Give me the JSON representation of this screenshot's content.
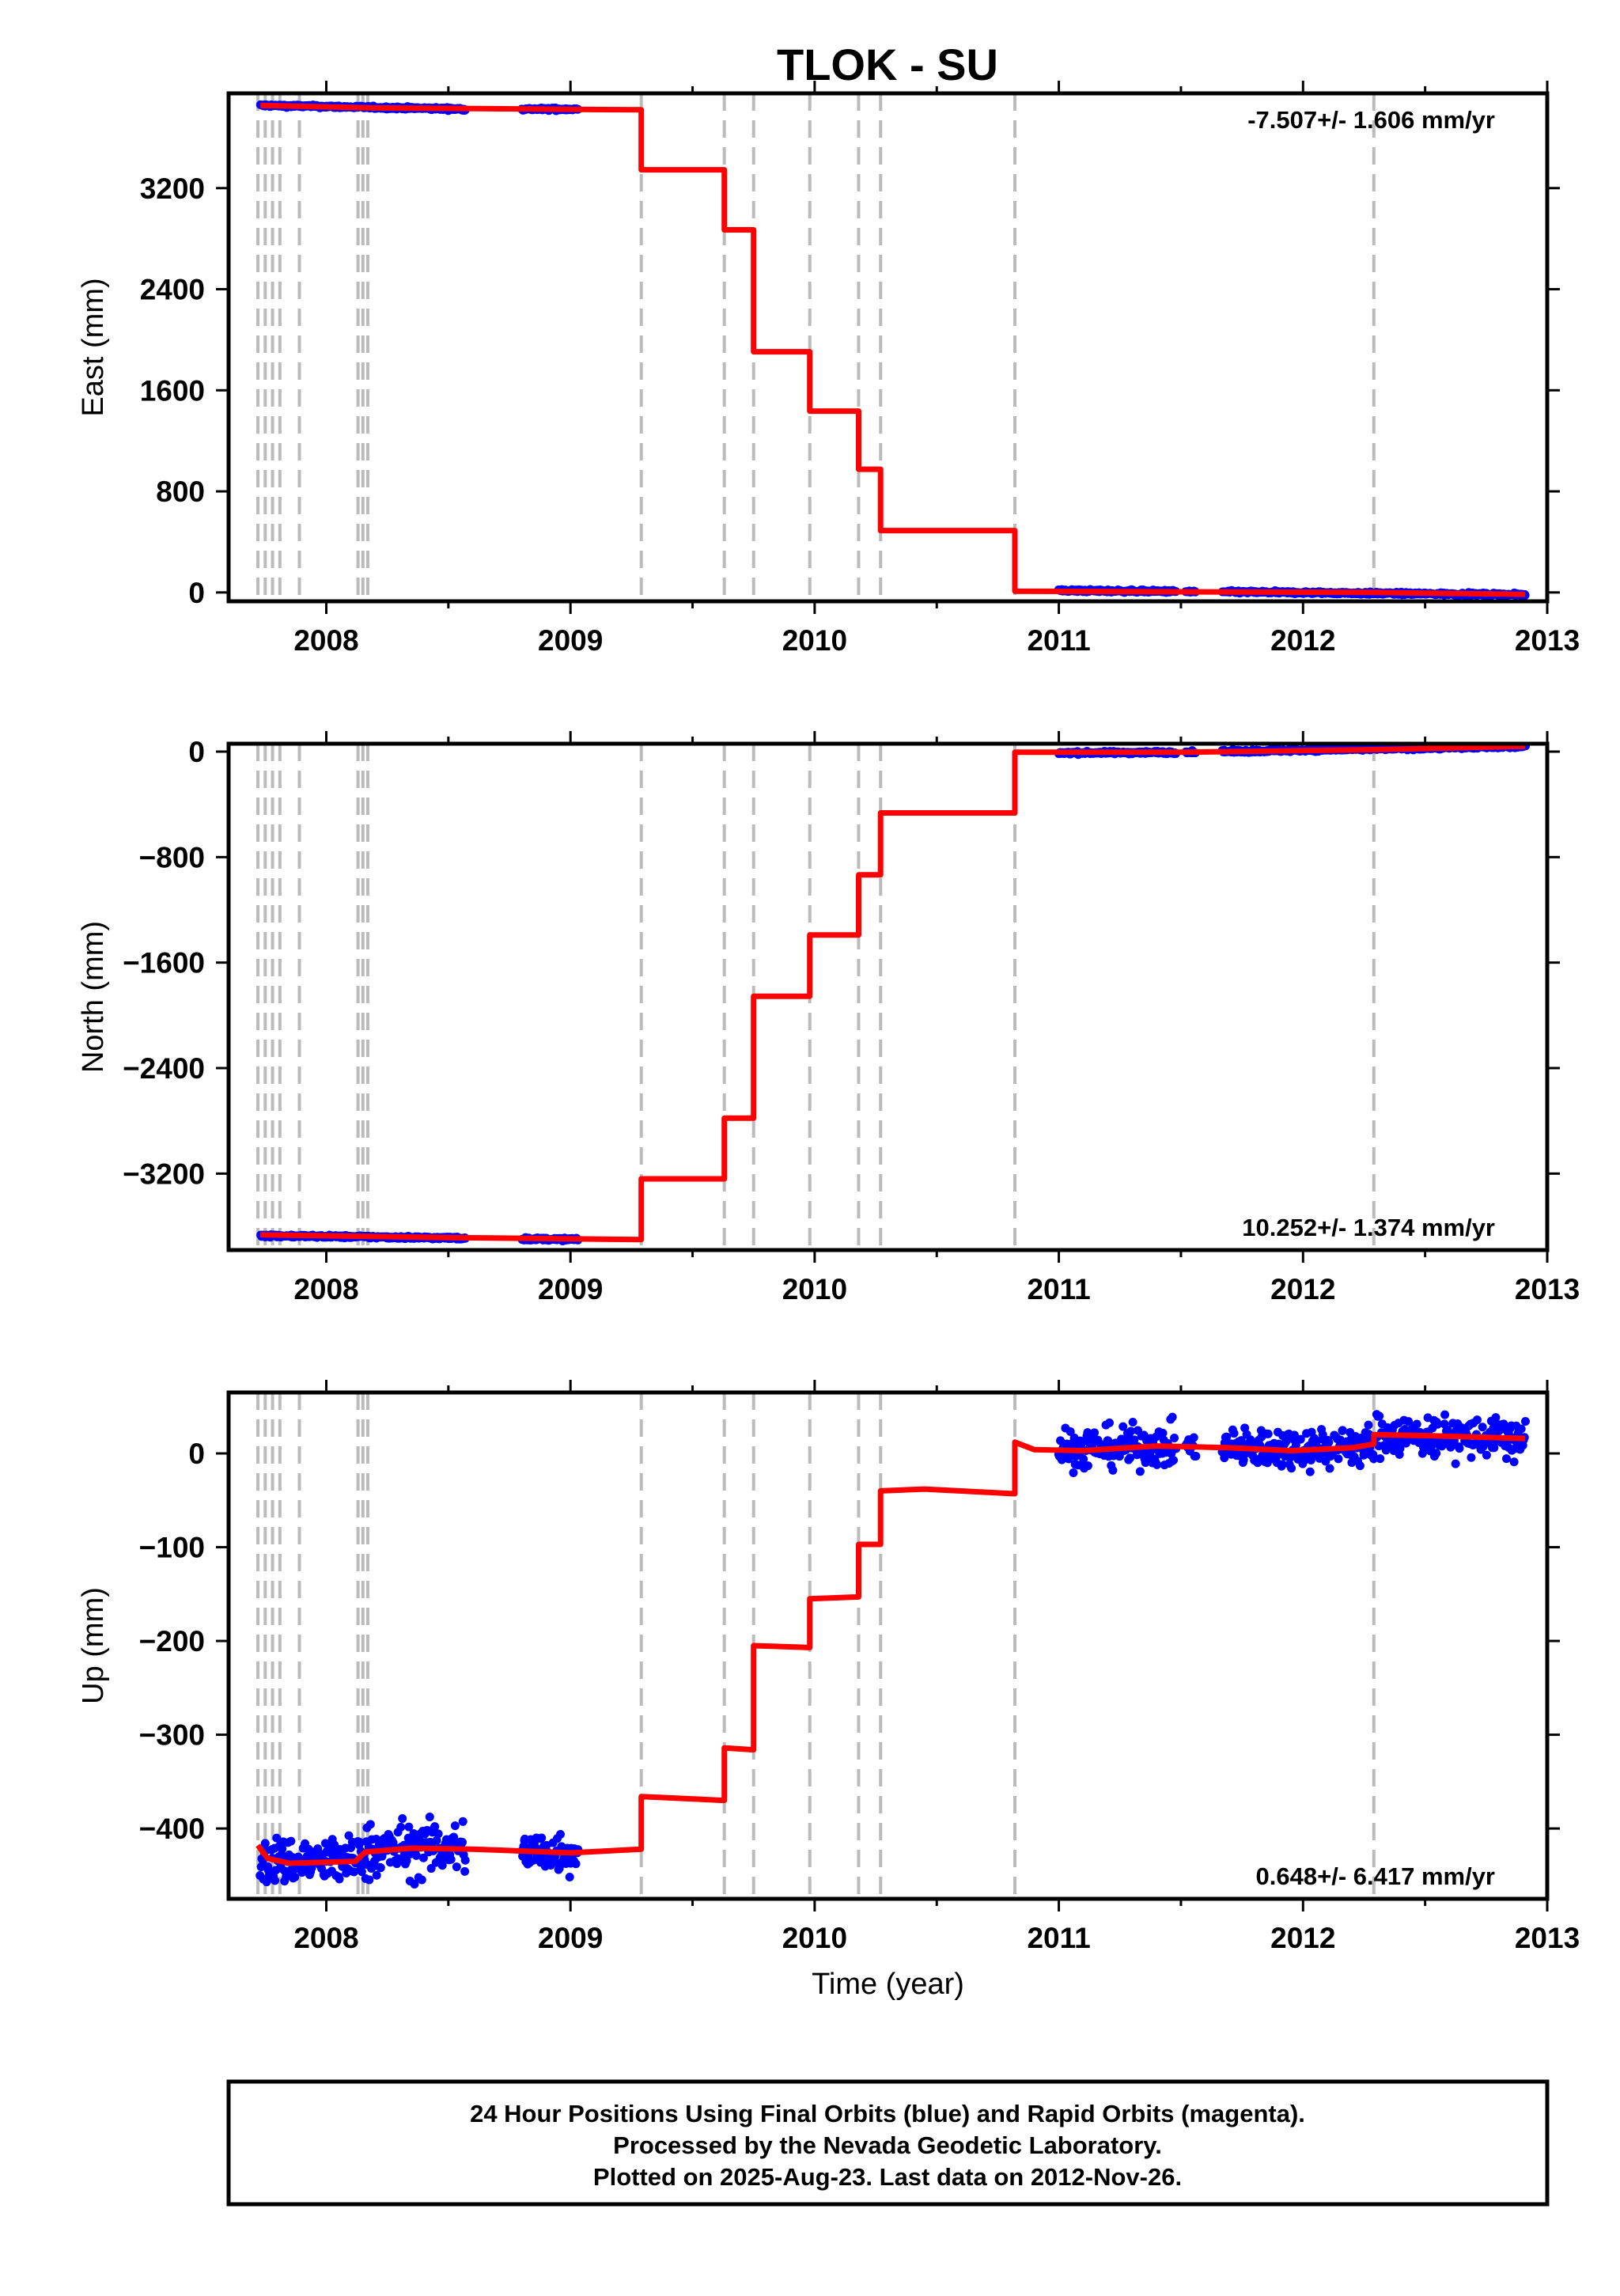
{
  "title": "TLOK - SU",
  "footer": {
    "line1": "24 Hour Positions Using Final Orbits (blue) and Rapid Orbits (magenta).",
    "line2": "Processed by the Nevada Geodetic Laboratory.",
    "line3": "Plotted on 2025-Aug-23. Last data on 2012-Nov-26."
  },
  "colors": {
    "final_orbits": "#0000ff",
    "model": "#ff0000",
    "event_lines": "#bbbbbb",
    "frame": "#000000"
  },
  "chart_data": [
    {
      "type": "scatter",
      "ylabel": "East (mm)",
      "xlabel": "",
      "xlim": [
        2007.6,
        2013.0
      ],
      "ylim": [
        -70,
        3950
      ],
      "yticks": [
        0,
        800,
        1600,
        2400,
        3200
      ],
      "xticks": [
        2008,
        2009,
        2010,
        2011,
        2012,
        2013
      ],
      "rate": "-7.507+/- 1.606 mm/yr",
      "rate_position": "top-right",
      "grid": false,
      "event_lines": [
        2007.72,
        2007.75,
        2007.78,
        2007.81,
        2007.89,
        2008.13,
        2008.15,
        2008.17,
        2009.29,
        2009.63,
        2009.75,
        2009.98,
        2010.18,
        2010.27,
        2010.82,
        2012.29
      ],
      "data_segments": [
        [
          2007.73,
          2008.57
        ],
        [
          2008.8,
          2009.03
        ],
        [
          2011.0,
          2011.48
        ],
        [
          2011.52,
          2011.56
        ],
        [
          2011.67,
          2012.91
        ]
      ],
      "series": [
        {
          "name": "Final Orbits",
          "segments": [
            {
              "start": 2007.73,
              "end": 2008.57,
              "y_start": 3855,
              "y_end": 3825,
              "scatter": 5
            },
            {
              "start": 2008.8,
              "end": 2009.03,
              "y_start": 3825,
              "y_end": 3825,
              "scatter": 5
            },
            {
              "start": 2011.0,
              "end": 2011.48,
              "y_start": 15,
              "y_end": 8,
              "scatter": 5
            },
            {
              "start": 2011.52,
              "end": 2011.56,
              "y_start": 6,
              "y_end": 6,
              "scatter": 5
            },
            {
              "start": 2011.67,
              "end": 2012.91,
              "y_start": 5,
              "y_end": -18,
              "scatter": 5
            }
          ]
        },
        {
          "name": "Model",
          "points": [
            [
              2007.73,
              3855
            ],
            [
              2008.2,
              3835
            ],
            [
              2009.29,
              3820
            ],
            [
              2009.29,
              3345
            ],
            [
              2009.63,
              3345
            ],
            [
              2009.63,
              2870
            ],
            [
              2009.75,
              2870
            ],
            [
              2009.75,
              1905
            ],
            [
              2009.98,
              1905
            ],
            [
              2009.98,
              1435
            ],
            [
              2010.18,
              1435
            ],
            [
              2010.18,
              975
            ],
            [
              2010.27,
              975
            ],
            [
              2010.27,
              490
            ],
            [
              2010.82,
              490
            ],
            [
              2010.82,
              10
            ],
            [
              2011.5,
              5
            ],
            [
              2012.29,
              0
            ],
            [
              2012.91,
              -15
            ]
          ]
        }
      ]
    },
    {
      "type": "scatter",
      "ylabel": "North (mm)",
      "xlabel": "",
      "xlim": [
        2007.6,
        2013.0
      ],
      "ylim": [
        -3780,
        60
      ],
      "yticks": [
        -3200,
        -2400,
        -1600,
        -800,
        0
      ],
      "xticks": [
        2008,
        2009,
        2010,
        2011,
        2012,
        2013
      ],
      "rate": "10.252+/- 1.374 mm/yr",
      "rate_position": "bottom-right",
      "grid": false,
      "event_lines": [
        2007.72,
        2007.75,
        2007.78,
        2007.81,
        2007.89,
        2008.13,
        2008.15,
        2008.17,
        2009.29,
        2009.63,
        2009.75,
        2009.98,
        2010.18,
        2010.27,
        2010.82,
        2012.29
      ],
      "series": [
        {
          "name": "Final Orbits",
          "segments": [
            {
              "start": 2007.73,
              "end": 2008.57,
              "y_start": -3670,
              "y_end": -3690,
              "scatter": 5
            },
            {
              "start": 2008.8,
              "end": 2009.03,
              "y_start": -3695,
              "y_end": -3700,
              "scatter": 5
            },
            {
              "start": 2011.0,
              "end": 2011.48,
              "y_start": -10,
              "y_end": -5,
              "scatter": 5
            },
            {
              "start": 2011.52,
              "end": 2011.56,
              "y_start": -3,
              "y_end": -3,
              "scatter": 5
            },
            {
              "start": 2011.67,
              "end": 2012.91,
              "y_start": 0,
              "y_end": 40,
              "scatter": 5
            }
          ]
        },
        {
          "name": "Model",
          "points": [
            [
              2007.73,
              -3665
            ],
            [
              2008.5,
              -3685
            ],
            [
              2009.29,
              -3700
            ],
            [
              2009.29,
              -3240
            ],
            [
              2009.63,
              -3240
            ],
            [
              2009.63,
              -2780
            ],
            [
              2009.75,
              -2780
            ],
            [
              2009.75,
              -1855
            ],
            [
              2009.98,
              -1855
            ],
            [
              2009.98,
              -1390
            ],
            [
              2010.18,
              -1390
            ],
            [
              2010.18,
              -935
            ],
            [
              2010.27,
              -935
            ],
            [
              2010.27,
              -465
            ],
            [
              2010.82,
              -465
            ],
            [
              2010.82,
              -5
            ],
            [
              2011.5,
              -5
            ],
            [
              2012.29,
              15
            ],
            [
              2012.91,
              40
            ]
          ]
        }
      ]
    },
    {
      "type": "scatter",
      "ylabel": "Up (mm)",
      "xlabel": "Time (year)",
      "xlim": [
        2007.6,
        2013.0
      ],
      "ylim": [
        -475,
        65
      ],
      "yticks": [
        -400,
        -300,
        -200,
        -100,
        0
      ],
      "xticks": [
        2008,
        2009,
        2010,
        2011,
        2012,
        2013
      ],
      "rate": "0.648+/- 6.417 mm/yr",
      "rate_position": "bottom-right",
      "grid": false,
      "event_lines": [
        2007.72,
        2007.75,
        2007.78,
        2007.81,
        2007.89,
        2008.13,
        2008.15,
        2008.17,
        2009.29,
        2009.63,
        2009.75,
        2009.98,
        2010.18,
        2010.27,
        2010.82,
        2012.29
      ],
      "series": [
        {
          "name": "Final Orbits",
          "segments": [
            {
              "start": 2007.73,
              "end": 2008.12,
              "y_start": -435,
              "y_end": -435,
              "scatter": 13
            },
            {
              "start": 2008.13,
              "end": 2008.57,
              "y_start": -425,
              "y_end": -420,
              "scatter": 15
            },
            {
              "start": 2008.8,
              "end": 2009.03,
              "y_start": -425,
              "y_end": -425,
              "scatter": 12
            },
            {
              "start": 2011.0,
              "end": 2011.48,
              "y_start": 5,
              "y_end": 8,
              "scatter": 11
            },
            {
              "start": 2011.52,
              "end": 2011.56,
              "y_start": 8,
              "y_end": 8,
              "scatter": 6
            },
            {
              "start": 2011.67,
              "end": 2012.29,
              "y_start": 5,
              "y_end": 8,
              "scatter": 11
            },
            {
              "start": 2012.29,
              "end": 2012.91,
              "y_start": 20,
              "y_end": 15,
              "scatter": 11
            }
          ]
        },
        {
          "name": "Model",
          "points": [
            [
              2007.72,
              -418
            ],
            [
              2007.76,
              -432
            ],
            [
              2007.85,
              -437
            ],
            [
              2008.12,
              -435
            ],
            [
              2008.16,
              -425
            ],
            [
              2008.35,
              -421
            ],
            [
              2008.6,
              -422
            ],
            [
              2009.0,
              -426
            ],
            [
              2009.29,
              -422
            ],
            [
              2009.29,
              -366
            ],
            [
              2009.63,
              -370
            ],
            [
              2009.63,
              -314
            ],
            [
              2009.75,
              -316
            ],
            [
              2009.75,
              -205
            ],
            [
              2009.98,
              -207
            ],
            [
              2009.98,
              -155
            ],
            [
              2010.18,
              -153
            ],
            [
              2010.18,
              -97
            ],
            [
              2010.27,
              -97
            ],
            [
              2010.27,
              -40
            ],
            [
              2010.45,
              -38
            ],
            [
              2010.82,
              -43
            ],
            [
              2010.82,
              12
            ],
            [
              2010.9,
              4
            ],
            [
              2011.1,
              3
            ],
            [
              2011.4,
              8
            ],
            [
              2011.7,
              6
            ],
            [
              2011.95,
              3
            ],
            [
              2012.2,
              6
            ],
            [
              2012.29,
              10
            ],
            [
              2012.29,
              20
            ],
            [
              2012.5,
              19
            ],
            [
              2012.91,
              16
            ]
          ]
        }
      ]
    }
  ]
}
